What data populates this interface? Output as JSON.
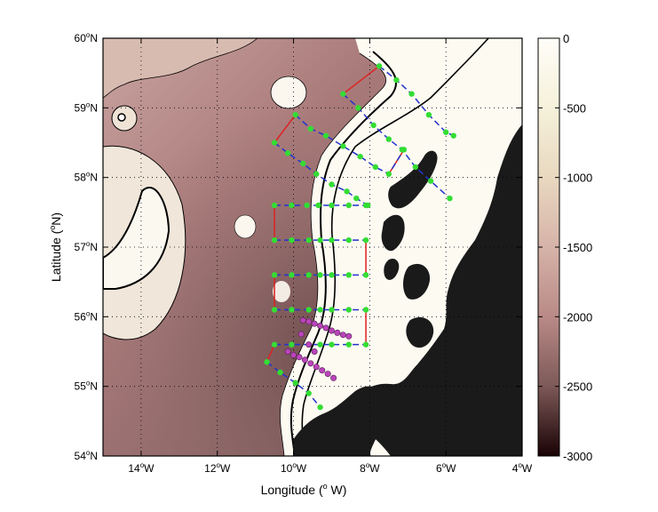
{
  "map": {
    "xlabel": "Longitude (",
    "xlabel_sup": "o",
    "xlabel_end": " W)",
    "ylabel": "Latitude (",
    "ylabel_sup": "o",
    "ylabel_end": "N)",
    "xlim": [
      -15,
      -4
    ],
    "ylim": [
      54,
      60
    ],
    "x_ticks": [
      {
        "value": -14,
        "num": "14",
        "sup": "o",
        "hem": "W"
      },
      {
        "value": -12,
        "num": "12",
        "sup": "o",
        "hem": "W"
      },
      {
        "value": -10,
        "num": "10",
        "sup": "o",
        "hem": "W"
      },
      {
        "value": -8,
        "num": "8",
        "sup": "o",
        "hem": "W"
      },
      {
        "value": -6,
        "num": "6",
        "sup": "o",
        "hem": "W"
      },
      {
        "value": -4,
        "num": "4",
        "sup": "o",
        "hem": "W"
      }
    ],
    "y_ticks": [
      {
        "value": 54,
        "num": "54",
        "sup": "o",
        "hem": "N"
      },
      {
        "value": 55,
        "num": "55",
        "sup": "o",
        "hem": "N"
      },
      {
        "value": 56,
        "num": "56",
        "sup": "o",
        "hem": "N"
      },
      {
        "value": 57,
        "num": "57",
        "sup": "o",
        "hem": "N"
      },
      {
        "value": 58,
        "num": "58",
        "sup": "o",
        "hem": "N"
      },
      {
        "value": 59,
        "num": "59",
        "sup": "o",
        "hem": "N"
      },
      {
        "value": 60,
        "num": "60",
        "sup": "o",
        "hem": "N"
      }
    ],
    "grid": "dotted"
  },
  "colorbar": {
    "range": [
      -3000,
      0
    ],
    "labels": [
      "0",
      "-500",
      "-1000",
      "-1500",
      "-2000",
      "-2500",
      "-3000"
    ],
    "values": [
      0,
      -500,
      -1000,
      -1500,
      -2000,
      -2500,
      -3000
    ],
    "colors": [
      "#fffdf8",
      "#f5f1da",
      "#e9d8c0",
      "#d6b3a8",
      "#b98a87",
      "#7d5958",
      "#1a0204"
    ]
  },
  "colors": {
    "station": "#33dd33",
    "transect": "#2233cc",
    "connector": "#dd2222",
    "mooring": "#bb44bb",
    "land": "#1a1a1a"
  },
  "chart_data": {
    "type": "map",
    "transects": [
      [
        [
          -8.7,
          59.2
        ],
        [
          -8.3,
          59.0
        ],
        [
          -7.9,
          58.75
        ],
        [
          -7.5,
          58.55
        ],
        [
          -7.15,
          58.4
        ],
        [
          -6.8,
          58.15
        ],
        [
          -6.4,
          57.95
        ],
        [
          -5.9,
          57.7
        ]
      ],
      [
        [
          -7.75,
          59.6
        ],
        [
          -7.3,
          59.4
        ],
        [
          -6.9,
          59.2
        ],
        [
          -6.45,
          58.9
        ],
        [
          -6.0,
          58.65
        ],
        [
          -5.8,
          58.6
        ]
      ],
      [
        [
          -9.95,
          58.9
        ],
        [
          -9.55,
          58.7
        ],
        [
          -9.15,
          58.6
        ],
        [
          -8.7,
          58.45
        ],
        [
          -8.25,
          58.3
        ],
        [
          -7.85,
          58.15
        ],
        [
          -7.5,
          58.05
        ],
        [
          -7.1,
          58.4
        ]
      ],
      [
        [
          -10.5,
          58.5
        ],
        [
          -10.15,
          58.35
        ],
        [
          -9.75,
          58.2
        ],
        [
          -9.4,
          58.05
        ],
        [
          -9.0,
          57.9
        ],
        [
          -8.6,
          57.8
        ],
        [
          -8.35,
          57.7
        ],
        [
          -8.05,
          57.6
        ]
      ],
      [
        [
          -10.5,
          57.6
        ],
        [
          -10.05,
          57.6
        ],
        [
          -9.65,
          57.6
        ],
        [
          -9.35,
          57.6
        ],
        [
          -9.0,
          57.6
        ],
        [
          -8.55,
          57.6
        ],
        [
          -8.1,
          57.6
        ]
      ],
      [
        [
          -10.5,
          57.1
        ],
        [
          -10.05,
          57.1
        ],
        [
          -9.6,
          57.1
        ],
        [
          -9.3,
          57.1
        ],
        [
          -9.0,
          57.1
        ],
        [
          -8.55,
          57.1
        ],
        [
          -8.1,
          57.1
        ]
      ],
      [
        [
          -10.5,
          56.6
        ],
        [
          -10.05,
          56.6
        ],
        [
          -9.6,
          56.6
        ],
        [
          -9.3,
          56.6
        ],
        [
          -9.0,
          56.6
        ],
        [
          -8.55,
          56.6
        ],
        [
          -8.1,
          56.6
        ]
      ],
      [
        [
          -10.5,
          56.1
        ],
        [
          -10.05,
          56.1
        ],
        [
          -9.6,
          56.1
        ],
        [
          -9.3,
          56.1
        ],
        [
          -9.0,
          56.1
        ],
        [
          -8.55,
          56.1
        ],
        [
          -8.1,
          56.1
        ]
      ],
      [
        [
          -10.5,
          55.6
        ],
        [
          -10.05,
          55.6
        ],
        [
          -9.6,
          55.6
        ],
        [
          -9.3,
          55.6
        ],
        [
          -9.0,
          55.6
        ],
        [
          -8.55,
          55.6
        ],
        [
          -8.1,
          55.6
        ]
      ],
      [
        [
          -10.7,
          55.35
        ],
        [
          -10.35,
          55.2
        ],
        [
          -9.95,
          55.05
        ],
        [
          -9.6,
          54.9
        ],
        [
          -9.3,
          54.7
        ]
      ]
    ],
    "connectors": [
      [
        [
          -8.7,
          59.2
        ],
        [
          -7.75,
          59.6
        ]
      ],
      [
        [
          -10.5,
          58.5
        ],
        [
          -9.95,
          58.9
        ]
      ],
      [
        [
          -7.5,
          58.05
        ],
        [
          -7.1,
          58.4
        ]
      ],
      [
        [
          -10.5,
          57.6
        ],
        [
          -10.5,
          57.1
        ]
      ],
      [
        [
          -8.1,
          57.1
        ],
        [
          -8.1,
          56.6
        ]
      ],
      [
        [
          -10.5,
          56.6
        ],
        [
          -10.5,
          56.1
        ]
      ],
      [
        [
          -8.1,
          56.1
        ],
        [
          -8.1,
          55.6
        ]
      ],
      [
        [
          -10.5,
          55.6
        ],
        [
          -10.7,
          55.35
        ]
      ]
    ],
    "mooring_lines": [
      [
        [
          -9.75,
          55.95
        ],
        [
          -9.6,
          55.93
        ],
        [
          -9.45,
          55.9
        ],
        [
          -9.3,
          55.87
        ],
        [
          -9.15,
          55.84
        ],
        [
          -9.0,
          55.8
        ],
        [
          -8.85,
          55.77
        ],
        [
          -8.7,
          55.74
        ],
        [
          -8.55,
          55.72
        ]
      ],
      [
        [
          -10.15,
          55.5
        ],
        [
          -10.0,
          55.45
        ],
        [
          -9.85,
          55.42
        ],
        [
          -9.7,
          55.38
        ],
        [
          -9.55,
          55.33
        ],
        [
          -9.4,
          55.28
        ],
        [
          -9.25,
          55.23
        ],
        [
          -9.1,
          55.18
        ],
        [
          -8.95,
          55.12
        ]
      ],
      [
        [
          -9.8,
          55.75
        ],
        [
          -9.6,
          55.6
        ],
        [
          -9.45,
          55.5
        ]
      ]
    ]
  }
}
